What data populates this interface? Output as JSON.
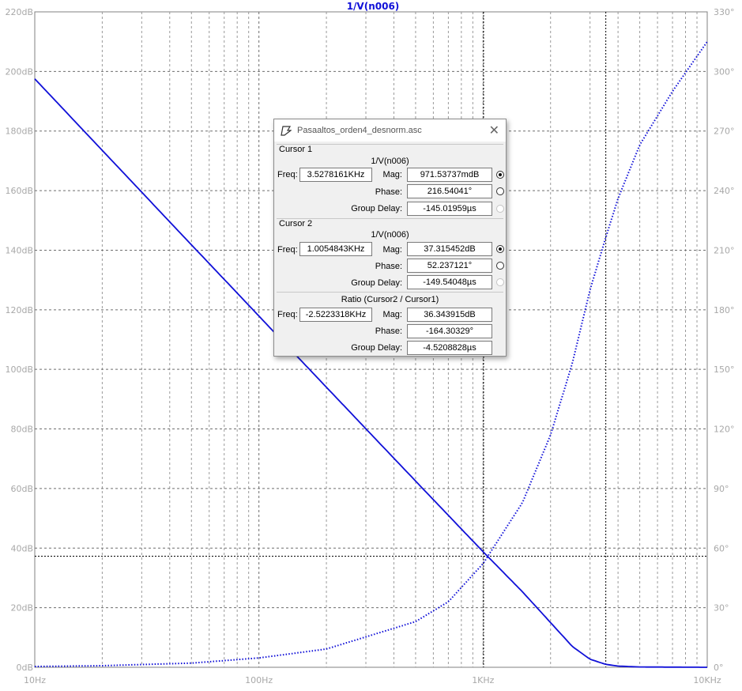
{
  "chart_data": {
    "type": "line",
    "title": "1/V(n006)",
    "x_scale": "log",
    "xlim_hz": [
      10,
      10000
    ],
    "x_ticks": [
      {
        "value": 10,
        "label": "10Hz"
      },
      {
        "value": 100,
        "label": "100Hz"
      },
      {
        "value": 1000,
        "label": "1KHz"
      },
      {
        "value": 10000,
        "label": "10KHz"
      }
    ],
    "y_left": {
      "unit": "dB",
      "lim": [
        0,
        220
      ],
      "ticks": [
        "0dB",
        "20dB",
        "40dB",
        "60dB",
        "80dB",
        "100dB",
        "120dB",
        "140dB",
        "160dB",
        "180dB",
        "200dB",
        "220dB"
      ]
    },
    "y_right": {
      "unit": "deg",
      "lim": [
        0,
        330
      ],
      "ticks": [
        "0°",
        "30°",
        "60°",
        "90°",
        "120°",
        "150°",
        "180°",
        "210°",
        "240°",
        "270°",
        "300°",
        "330°"
      ]
    },
    "grid": true,
    "line_color": "#1010d8",
    "series": [
      {
        "style": "solid",
        "axis": "left",
        "x": [
          10,
          20,
          50,
          100,
          200,
          500,
          1000,
          1500,
          2000,
          2500,
          3000,
          3528,
          4000,
          5000,
          10000
        ],
        "y": [
          197.5,
          173.5,
          141.8,
          117.9,
          94.0,
          62.5,
          38.8,
          25.3,
          15.0,
          7.0,
          2.7,
          0.97,
          0.4,
          0.1,
          0.0
        ]
      },
      {
        "style": "dotted",
        "axis": "right",
        "x": [
          10,
          20,
          50,
          100,
          200,
          500,
          700,
          1000,
          1500,
          2000,
          2500,
          3000,
          3528,
          4000,
          5000,
          7000,
          10000
        ],
        "y": [
          0.4,
          0.8,
          2.1,
          4.7,
          9.2,
          23.0,
          33.0,
          52.2,
          83.0,
          117.0,
          153.0,
          190.0,
          216.5,
          236.0,
          263.0,
          290.0,
          315.0
        ]
      }
    ],
    "cursor_lines": {
      "cursor1_freq_hz": 3528,
      "cursor2_freq_hz": 1005,
      "cursor2_mag_db": 37.3
    }
  },
  "dialog": {
    "title": "Pasaaltos_orden4_desnorm.asc",
    "close": "✕",
    "cursor1": {
      "group": "Cursor 1",
      "trace": "1/V(n006)",
      "freq_label": "Freq:",
      "freq": "3.5278161KHz",
      "mag_label": "Mag:",
      "mag": "971.53737mdB",
      "phase_label": "Phase:",
      "phase": "216.54041°",
      "gd_label": "Group Delay:",
      "gd": "-145.01959µs"
    },
    "cursor2": {
      "group": "Cursor 2",
      "trace": "1/V(n006)",
      "freq_label": "Freq:",
      "freq": "1.0054843KHz",
      "mag_label": "Mag:",
      "mag": "37.315452dB",
      "phase_label": "Phase:",
      "phase": "52.237121°",
      "gd_label": "Group Delay:",
      "gd": "-149.54048µs"
    },
    "ratio": {
      "group": "Ratio (Cursor2 / Cursor1)",
      "freq_label": "Freq:",
      "freq": "-2.5223318KHz",
      "mag_label": "Mag:",
      "mag": "36.343915dB",
      "phase_label": "Phase:",
      "phase": "-164.30329°",
      "gd_label": "Group Delay:",
      "gd": "-4.5208828µs"
    },
    "radio_state": {
      "cursor1": "mag",
      "cursor2": "mag"
    }
  }
}
